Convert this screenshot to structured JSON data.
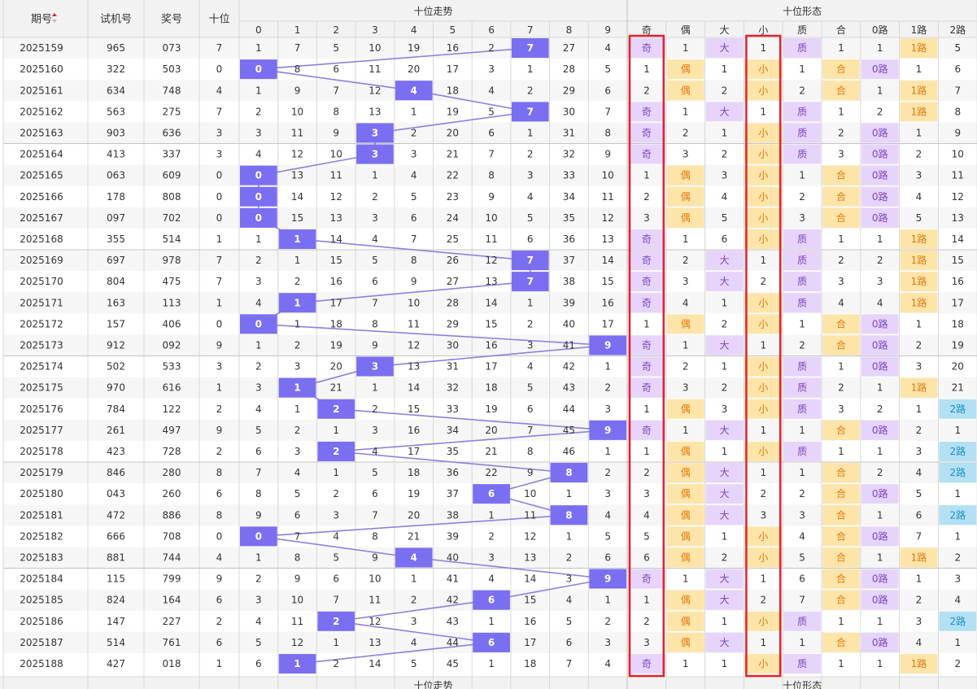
{
  "chart_data": {
    "type": "table",
    "header": {
      "period": "期号",
      "trial": "试机号",
      "prize": "奖号",
      "tens": "十位",
      "trend_group": "十位走势",
      "form_group": "十位形态",
      "trend_cols": [
        "0",
        "1",
        "2",
        "3",
        "4",
        "5",
        "6",
        "7",
        "8",
        "9"
      ],
      "form_cols": [
        "奇",
        "偶",
        "大",
        "小",
        "质",
        "合",
        "0路",
        "1路",
        "2路"
      ]
    },
    "footer": {
      "trend_group": "十位走势",
      "form_group": "十位形态"
    },
    "rows": [
      {
        "period": "2025159",
        "trial": "965",
        "prize": "073",
        "tens": 7,
        "trend": [
          1,
          7,
          5,
          10,
          19,
          16,
          2,
          7,
          27,
          4
        ],
        "form": [
          "奇",
          "1",
          "大",
          "1",
          "质",
          "1",
          "1",
          "1路",
          "5"
        ]
      },
      {
        "period": "2025160",
        "trial": "322",
        "prize": "503",
        "tens": 0,
        "trend": [
          0,
          8,
          6,
          11,
          20,
          17,
          3,
          1,
          28,
          5
        ],
        "form": [
          "1",
          "偶",
          "1",
          "小",
          "1",
          "合",
          "0路",
          "1",
          "6"
        ]
      },
      {
        "period": "2025161",
        "trial": "634",
        "prize": "748",
        "tens": 4,
        "trend": [
          1,
          9,
          7,
          12,
          4,
          18,
          4,
          2,
          29,
          6
        ],
        "form": [
          "2",
          "偶",
          "2",
          "小",
          "2",
          "合",
          "1",
          "1路",
          "7"
        ]
      },
      {
        "period": "2025162",
        "trial": "563",
        "prize": "275",
        "tens": 7,
        "trend": [
          2,
          10,
          8,
          13,
          1,
          19,
          5,
          7,
          30,
          7
        ],
        "form": [
          "奇",
          "1",
          "大",
          "1",
          "质",
          "1",
          "2",
          "1路",
          "8"
        ]
      },
      {
        "period": "2025163",
        "trial": "903",
        "prize": "636",
        "tens": 3,
        "trend": [
          3,
          11,
          9,
          3,
          2,
          20,
          6,
          1,
          31,
          8
        ],
        "form": [
          "奇",
          "2",
          "1",
          "小",
          "质",
          "2",
          "0路",
          "1",
          "9"
        ]
      },
      {
        "period": "2025164",
        "trial": "413",
        "prize": "337",
        "tens": 3,
        "trend": [
          4,
          12,
          10,
          3,
          3,
          21,
          7,
          2,
          32,
          9
        ],
        "form": [
          "奇",
          "3",
          "2",
          "小",
          "质",
          "3",
          "0路",
          "2",
          "10"
        ]
      },
      {
        "period": "2025165",
        "trial": "063",
        "prize": "609",
        "tens": 0,
        "trend": [
          0,
          13,
          11,
          1,
          4,
          22,
          8,
          3,
          33,
          10
        ],
        "form": [
          "1",
          "偶",
          "3",
          "小",
          "1",
          "合",
          "0路",
          "3",
          "11"
        ]
      },
      {
        "period": "2025166",
        "trial": "178",
        "prize": "808",
        "tens": 0,
        "trend": [
          0,
          14,
          12,
          2,
          5,
          23,
          9,
          4,
          34,
          11
        ],
        "form": [
          "2",
          "偶",
          "4",
          "小",
          "2",
          "合",
          "0路",
          "4",
          "12"
        ]
      },
      {
        "period": "2025167",
        "trial": "097",
        "prize": "702",
        "tens": 0,
        "trend": [
          0,
          15,
          13,
          3,
          6,
          24,
          10,
          5,
          35,
          12
        ],
        "form": [
          "3",
          "偶",
          "5",
          "小",
          "3",
          "合",
          "0路",
          "5",
          "13"
        ]
      },
      {
        "period": "2025168",
        "trial": "355",
        "prize": "514",
        "tens": 1,
        "trend": [
          1,
          1,
          14,
          4,
          7,
          25,
          11,
          6,
          36,
          13
        ],
        "form": [
          "奇",
          "1",
          "6",
          "小",
          "质",
          "1",
          "1",
          "1路",
          "14"
        ]
      },
      {
        "period": "2025169",
        "trial": "697",
        "prize": "978",
        "tens": 7,
        "trend": [
          2,
          1,
          15,
          5,
          8,
          26,
          12,
          7,
          37,
          14
        ],
        "form": [
          "奇",
          "2",
          "大",
          "1",
          "质",
          "2",
          "2",
          "1路",
          "15"
        ]
      },
      {
        "period": "2025170",
        "trial": "804",
        "prize": "475",
        "tens": 7,
        "trend": [
          3,
          2,
          16,
          6,
          9,
          27,
          13,
          7,
          38,
          15
        ],
        "form": [
          "奇",
          "3",
          "大",
          "2",
          "质",
          "3",
          "3",
          "1路",
          "16"
        ]
      },
      {
        "period": "2025171",
        "trial": "163",
        "prize": "113",
        "tens": 1,
        "trend": [
          4,
          1,
          17,
          7,
          10,
          28,
          14,
          1,
          39,
          16
        ],
        "form": [
          "奇",
          "4",
          "1",
          "小",
          "质",
          "4",
          "4",
          "1路",
          "17"
        ]
      },
      {
        "period": "2025172",
        "trial": "157",
        "prize": "406",
        "tens": 0,
        "trend": [
          0,
          1,
          18,
          8,
          11,
          29,
          15,
          2,
          40,
          17
        ],
        "form": [
          "1",
          "偶",
          "2",
          "小",
          "1",
          "合",
          "0路",
          "1",
          "18"
        ]
      },
      {
        "period": "2025173",
        "trial": "912",
        "prize": "092",
        "tens": 9,
        "trend": [
          1,
          2,
          19,
          9,
          12,
          30,
          16,
          3,
          41,
          9
        ],
        "form": [
          "奇",
          "1",
          "大",
          "1",
          "2",
          "合",
          "0路",
          "2",
          "19"
        ]
      },
      {
        "period": "2025174",
        "trial": "502",
        "prize": "533",
        "tens": 3,
        "trend": [
          2,
          3,
          20,
          3,
          13,
          31,
          17,
          4,
          42,
          1
        ],
        "form": [
          "奇",
          "2",
          "1",
          "小",
          "质",
          "1",
          "0路",
          "3",
          "20"
        ]
      },
      {
        "period": "2025175",
        "trial": "970",
        "prize": "616",
        "tens": 1,
        "trend": [
          3,
          1,
          21,
          1,
          14,
          32,
          18,
          5,
          43,
          2
        ],
        "form": [
          "奇",
          "3",
          "2",
          "小",
          "质",
          "2",
          "1",
          "1路",
          "21"
        ]
      },
      {
        "period": "2025176",
        "trial": "784",
        "prize": "122",
        "tens": 2,
        "trend": [
          4,
          1,
          2,
          2,
          15,
          33,
          19,
          6,
          44,
          3
        ],
        "form": [
          "1",
          "偶",
          "3",
          "小",
          "质",
          "3",
          "2",
          "1",
          "2路"
        ]
      },
      {
        "period": "2025177",
        "trial": "261",
        "prize": "497",
        "tens": 9,
        "trend": [
          5,
          2,
          1,
          3,
          16,
          34,
          20,
          7,
          45,
          9
        ],
        "form": [
          "奇",
          "1",
          "大",
          "1",
          "1",
          "合",
          "0路",
          "2",
          "1"
        ]
      },
      {
        "period": "2025178",
        "trial": "423",
        "prize": "728",
        "tens": 2,
        "trend": [
          6,
          3,
          2,
          4,
          17,
          35,
          21,
          8,
          46,
          1
        ],
        "form": [
          "1",
          "偶",
          "1",
          "小",
          "质",
          "1",
          "1",
          "3",
          "2路"
        ]
      },
      {
        "period": "2025179",
        "trial": "846",
        "prize": "280",
        "tens": 8,
        "trend": [
          7,
          4,
          1,
          5,
          18,
          36,
          22,
          9,
          8,
          2
        ],
        "form": [
          "2",
          "偶",
          "大",
          "1",
          "1",
          "合",
          "2",
          "4",
          "2路"
        ]
      },
      {
        "period": "2025180",
        "trial": "043",
        "prize": "260",
        "tens": 6,
        "trend": [
          8,
          5,
          2,
          6,
          19,
          37,
          6,
          10,
          1,
          3
        ],
        "form": [
          "3",
          "偶",
          "大",
          "2",
          "2",
          "合",
          "0路",
          "5",
          "1"
        ]
      },
      {
        "period": "2025181",
        "trial": "472",
        "prize": "886",
        "tens": 8,
        "trend": [
          9,
          6,
          3,
          7,
          20,
          38,
          1,
          11,
          8,
          4
        ],
        "form": [
          "4",
          "偶",
          "大",
          "3",
          "3",
          "合",
          "1",
          "6",
          "2路"
        ]
      },
      {
        "period": "2025182",
        "trial": "666",
        "prize": "708",
        "tens": 0,
        "trend": [
          0,
          7,
          4,
          8,
          21,
          39,
          2,
          12,
          1,
          5
        ],
        "form": [
          "5",
          "偶",
          "1",
          "小",
          "4",
          "合",
          "0路",
          "7",
          "1"
        ]
      },
      {
        "period": "2025183",
        "trial": "881",
        "prize": "744",
        "tens": 4,
        "trend": [
          1,
          8,
          5,
          9,
          4,
          40,
          3,
          13,
          2,
          6
        ],
        "form": [
          "6",
          "偶",
          "2",
          "小",
          "5",
          "合",
          "1",
          "1路",
          "2"
        ]
      },
      {
        "period": "2025184",
        "trial": "115",
        "prize": "799",
        "tens": 9,
        "trend": [
          2,
          9,
          6,
          10,
          1,
          41,
          4,
          14,
          3,
          9
        ],
        "form": [
          "奇",
          "1",
          "大",
          "1",
          "6",
          "合",
          "0路",
          "1",
          "3"
        ]
      },
      {
        "period": "2025185",
        "trial": "824",
        "prize": "164",
        "tens": 6,
        "trend": [
          3,
          10,
          7,
          11,
          2,
          42,
          6,
          15,
          4,
          1
        ],
        "form": [
          "1",
          "偶",
          "大",
          "2",
          "7",
          "合",
          "0路",
          "2",
          "4"
        ]
      },
      {
        "period": "2025186",
        "trial": "147",
        "prize": "227",
        "tens": 2,
        "trend": [
          4,
          11,
          2,
          12,
          3,
          43,
          1,
          16,
          5,
          2
        ],
        "form": [
          "2",
          "偶",
          "1",
          "小",
          "质",
          "1",
          "1",
          "3",
          "2路"
        ]
      },
      {
        "period": "2025187",
        "trial": "514",
        "prize": "761",
        "tens": 6,
        "trend": [
          5,
          12,
          1,
          13,
          4,
          44,
          6,
          17,
          6,
          3
        ],
        "form": [
          "3",
          "偶",
          "大",
          "1",
          "1",
          "合",
          "0路",
          "4",
          "1"
        ]
      },
      {
        "period": "2025188",
        "trial": "427",
        "prize": "018",
        "tens": 1,
        "trend": [
          6,
          1,
          2,
          14,
          5,
          45,
          1,
          18,
          7,
          4
        ],
        "form": [
          "奇",
          "1",
          "1",
          "小",
          "质",
          "1",
          "1",
          "1路",
          "2"
        ]
      }
    ],
    "sort_indicator": "period-descending",
    "highlighted_form_columns": [
      "奇",
      "小"
    ],
    "colors": {
      "ball": "#7a6ff0",
      "ball_line": "#8a82dd",
      "odd_fill": "#e6d4fb",
      "odd_text": "#7a46b8",
      "even_fill": "#fde4a8",
      "even_text": "#e07a10",
      "route1_fill": "#fde4a8",
      "route1_text": "#e07a10",
      "route2_fill": "#b3e0f2",
      "route2_text": "#1f8ec4",
      "highlight_box": "#e0222e",
      "grid": "#d8d8d8",
      "header_bg": "#f2f2f2",
      "stripe_bg": "#f6f6f6"
    }
  }
}
